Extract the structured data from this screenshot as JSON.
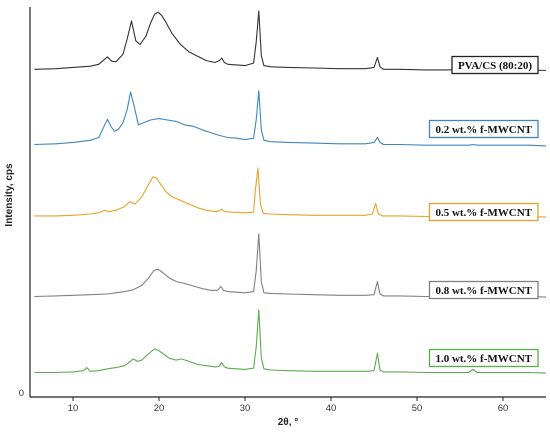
{
  "chart_data": {
    "type": "line",
    "title": "",
    "xlabel": "2θ, °",
    "ylabel": "Intensity, cps",
    "xlim": [
      5,
      65
    ],
    "xticks": [
      10,
      20,
      30,
      40,
      50,
      60
    ],
    "y_origin_label": "0",
    "grid": false,
    "legend": "right",
    "series": [
      {
        "name": "PVA/CS (80:20)",
        "color": "#333333",
        "x": [
          5.5,
          8,
          10,
          12,
          13,
          13.5,
          14,
          14.5,
          15,
          15.8,
          16.3,
          16.8,
          17.3,
          17.8,
          18.5,
          19,
          19.5,
          19.9,
          20.3,
          20.8,
          21.5,
          22.5,
          23.5,
          24.5,
          25.5,
          26.5,
          27,
          27.3,
          27.6,
          28,
          29,
          30,
          31,
          31.3,
          31.6,
          31.9,
          32.2,
          33,
          35,
          38,
          41,
          44,
          45,
          45.4,
          45.7,
          46.1,
          48,
          51,
          54,
          56,
          56.5,
          57,
          60,
          63,
          65
        ],
        "y": [
          0.06,
          0.07,
          0.09,
          0.11,
          0.14,
          0.2,
          0.26,
          0.19,
          0.18,
          0.3,
          0.55,
          0.84,
          0.52,
          0.46,
          0.6,
          0.8,
          0.95,
          0.98,
          0.93,
          0.82,
          0.64,
          0.46,
          0.34,
          0.27,
          0.2,
          0.17,
          0.2,
          0.24,
          0.17,
          0.14,
          0.13,
          0.12,
          0.16,
          0.5,
          1.0,
          0.28,
          0.12,
          0.1,
          0.09,
          0.08,
          0.07,
          0.07,
          0.09,
          0.25,
          0.1,
          0.06,
          0.06,
          0.05,
          0.05,
          0.05,
          0.09,
          0.05,
          0.05,
          0.05,
          0.04
        ]
      },
      {
        "name": "0.2 wt.% f-MWCNT",
        "color": "#3f86be",
        "x": [
          5.5,
          8,
          10,
          12,
          13,
          13.5,
          14,
          14.4,
          14.8,
          15.3,
          15.8,
          16.3,
          16.7,
          17.1,
          17.6,
          18.2,
          19,
          20,
          21,
          22,
          23,
          24,
          25,
          26,
          27,
          28,
          29,
          30,
          31,
          31.3,
          31.6,
          31.9,
          32.2,
          33,
          35,
          38,
          41,
          44,
          45,
          45.4,
          45.7,
          46.1,
          48,
          51,
          54,
          56,
          56.5,
          57,
          60,
          63,
          65
        ],
        "y": [
          0.05,
          0.06,
          0.08,
          0.11,
          0.15,
          0.28,
          0.41,
          0.31,
          0.24,
          0.27,
          0.36,
          0.55,
          0.8,
          0.6,
          0.33,
          0.36,
          0.4,
          0.42,
          0.4,
          0.38,
          0.33,
          0.31,
          0.26,
          0.22,
          0.18,
          0.15,
          0.14,
          0.12,
          0.14,
          0.4,
          0.82,
          0.26,
          0.11,
          0.09,
          0.08,
          0.07,
          0.06,
          0.06,
          0.08,
          0.15,
          0.08,
          0.05,
          0.05,
          0.04,
          0.04,
          0.04,
          0.05,
          0.04,
          0.04,
          0.04,
          0.03
        ]
      },
      {
        "name": "0.5 wt.% f-MWCNT",
        "color": "#eba228",
        "x": [
          5.5,
          8,
          10,
          12,
          13,
          13.7,
          14.2,
          15,
          16,
          16.6,
          17.2,
          18,
          18.8,
          19.3,
          19.7,
          20.2,
          20.8,
          21.5,
          22.5,
          23.5,
          24.5,
          25.5,
          26.5,
          27,
          27.3,
          27.6,
          28.5,
          30,
          31,
          31.2,
          31.5,
          31.8,
          32.1,
          33,
          35,
          38,
          41,
          44,
          44.8,
          45.2,
          45.5,
          46,
          48,
          51,
          54,
          56,
          56.5,
          57,
          60,
          63,
          65
        ],
        "y": [
          0.05,
          0.05,
          0.06,
          0.08,
          0.1,
          0.14,
          0.12,
          0.14,
          0.2,
          0.28,
          0.24,
          0.36,
          0.56,
          0.68,
          0.66,
          0.56,
          0.44,
          0.36,
          0.3,
          0.24,
          0.18,
          0.14,
          0.12,
          0.13,
          0.16,
          0.12,
          0.11,
          0.1,
          0.11,
          0.45,
          0.82,
          0.24,
          0.09,
          0.08,
          0.07,
          0.06,
          0.06,
          0.06,
          0.08,
          0.25,
          0.08,
          0.05,
          0.05,
          0.04,
          0.04,
          0.04,
          0.06,
          0.04,
          0.04,
          0.04,
          0.03
        ]
      },
      {
        "name": "0.8 wt.% f-MWCNT",
        "color": "#808080",
        "x": [
          5.5,
          8,
          10,
          12,
          14,
          15,
          16,
          17,
          18,
          18.8,
          19.4,
          19.9,
          20.5,
          21.2,
          22,
          23,
          24,
          25,
          26,
          26.8,
          27.2,
          27.5,
          28,
          29,
          30,
          31,
          31.3,
          31.6,
          31.9,
          32.2,
          33,
          35,
          38,
          41,
          44,
          45,
          45.4,
          45.7,
          46.1,
          48,
          51,
          54,
          56,
          56.5,
          57,
          60,
          63,
          65
        ],
        "y": [
          0.04,
          0.05,
          0.06,
          0.07,
          0.08,
          0.1,
          0.12,
          0.15,
          0.22,
          0.34,
          0.46,
          0.48,
          0.42,
          0.34,
          0.28,
          0.25,
          0.21,
          0.17,
          0.14,
          0.14,
          0.2,
          0.14,
          0.12,
          0.11,
          0.1,
          0.12,
          0.45,
          1.05,
          0.28,
          0.1,
          0.09,
          0.08,
          0.07,
          0.06,
          0.06,
          0.07,
          0.28,
          0.08,
          0.05,
          0.05,
          0.04,
          0.04,
          0.04,
          0.07,
          0.04,
          0.04,
          0.04,
          0.03
        ]
      },
      {
        "name": "1.0 wt.% f-MWCNT",
        "color": "#5dab4f",
        "x": [
          5.5,
          8,
          10,
          11.2,
          11.6,
          12,
          13,
          14,
          15,
          16,
          16.5,
          17,
          17.5,
          18,
          18.6,
          19.1,
          19.5,
          20,
          20.6,
          21.2,
          22,
          22.6,
          23.5,
          24.5,
          25.5,
          26.5,
          27,
          27.3,
          27.6,
          28,
          29,
          30,
          31,
          31.3,
          31.6,
          31.9,
          32.2,
          33,
          35,
          38,
          41,
          44,
          45,
          45.4,
          45.7,
          46.1,
          48,
          51,
          54,
          56,
          56.5,
          57,
          60,
          63,
          65
        ],
        "y": [
          0.04,
          0.04,
          0.05,
          0.07,
          0.12,
          0.06,
          0.07,
          0.1,
          0.12,
          0.15,
          0.2,
          0.26,
          0.22,
          0.24,
          0.32,
          0.38,
          0.42,
          0.39,
          0.33,
          0.27,
          0.24,
          0.26,
          0.22,
          0.17,
          0.15,
          0.13,
          0.14,
          0.2,
          0.13,
          0.11,
          0.1,
          0.09,
          0.11,
          0.45,
          1.05,
          0.28,
          0.1,
          0.08,
          0.07,
          0.06,
          0.06,
          0.06,
          0.07,
          0.35,
          0.08,
          0.05,
          0.05,
          0.04,
          0.04,
          0.04,
          0.09,
          0.04,
          0.04,
          0.04,
          0.03
        ]
      }
    ]
  }
}
